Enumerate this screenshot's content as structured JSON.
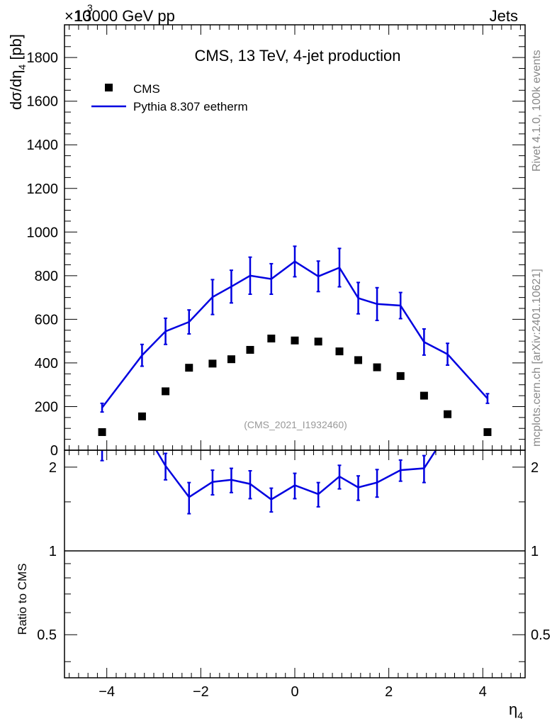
{
  "header": {
    "process": "13000 GeV pp",
    "category": "Jets",
    "exponent_prefix": "×10",
    "exponent": "3"
  },
  "chart_data": {
    "type": "line",
    "title": "CMS, 13 TeV, 4-jet production",
    "analysis_id": "(CMS_2021_I1932460)",
    "side_label_top": "Rivet 4.1.0,  100k events",
    "side_label_bottom": "mcplots.cern.ch [arXiv:2401.10621]",
    "xlabel": "η",
    "xlabel_sub": "4",
    "ylabel": "dσ/dη",
    "ylabel_sub": "4",
    "ylabel_unit": " [pb]",
    "ratio_ylabel": "Ratio to CMS",
    "xlim": [
      -4.9,
      4.9
    ],
    "ylim": [
      0,
      1950
    ],
    "ratio_ylim": [
      0.35,
      2.3
    ],
    "x_ticks": [
      -4,
      -2,
      0,
      2,
      4
    ],
    "x_tick_labels": [
      "−4",
      "−2",
      "0",
      "2",
      "4"
    ],
    "y_ticks": [
      0,
      200,
      400,
      600,
      800,
      1000,
      1200,
      1400,
      1600,
      1800
    ],
    "y_tick_labels": [
      "0",
      "200",
      "400",
      "600",
      "800",
      "1000",
      "1200",
      "1400",
      "1600",
      "1800"
    ],
    "ratio_ticks": [
      0.5,
      1,
      2
    ],
    "ratio_tick_labels": [
      "0.5",
      "1",
      "2"
    ],
    "x": [
      -4.1,
      -3.25,
      -2.75,
      -2.25,
      -1.75,
      -1.35,
      -0.95,
      -0.5,
      0,
      0.5,
      0.95,
      1.35,
      1.75,
      2.25,
      2.75,
      3.25,
      4.1
    ],
    "legend": [
      {
        "name": "CMS",
        "marker": "square"
      },
      {
        "name": "Pythia 8.307 eetherm",
        "marker": "line"
      }
    ],
    "series": [
      {
        "name": "CMS",
        "color": "#000000",
        "values": [
          83,
          155,
          270,
          378,
          397,
          417,
          460,
          512,
          503,
          498,
          453,
          413,
          380,
          340,
          250,
          165,
          83
        ]
      },
      {
        "name": "Pythia 8.307 eetherm",
        "color": "#0000e0",
        "values": [
          195,
          435,
          545,
          588,
          702,
          750,
          800,
          785,
          865,
          797,
          837,
          697,
          670,
          663,
          496,
          440,
          237
        ],
        "errors": [
          20,
          50,
          60,
          55,
          80,
          75,
          85,
          70,
          70,
          70,
          88,
          72,
          75,
          60,
          60,
          50,
          22
        ],
        "ratio": [
          2.35,
          2.8,
          2.02,
          1.56,
          1.77,
          1.8,
          1.74,
          1.53,
          1.72,
          1.6,
          1.85,
          1.69,
          1.76,
          1.95,
          1.98,
          2.67,
          2.86
        ],
        "ratio_errors": [
          0.24,
          0.3,
          0.22,
          0.2,
          0.18,
          0.18,
          0.2,
          0.15,
          0.18,
          0.16,
          0.18,
          0.17,
          0.2,
          0.17,
          0.22,
          0.3,
          0.25
        ]
      }
    ]
  }
}
